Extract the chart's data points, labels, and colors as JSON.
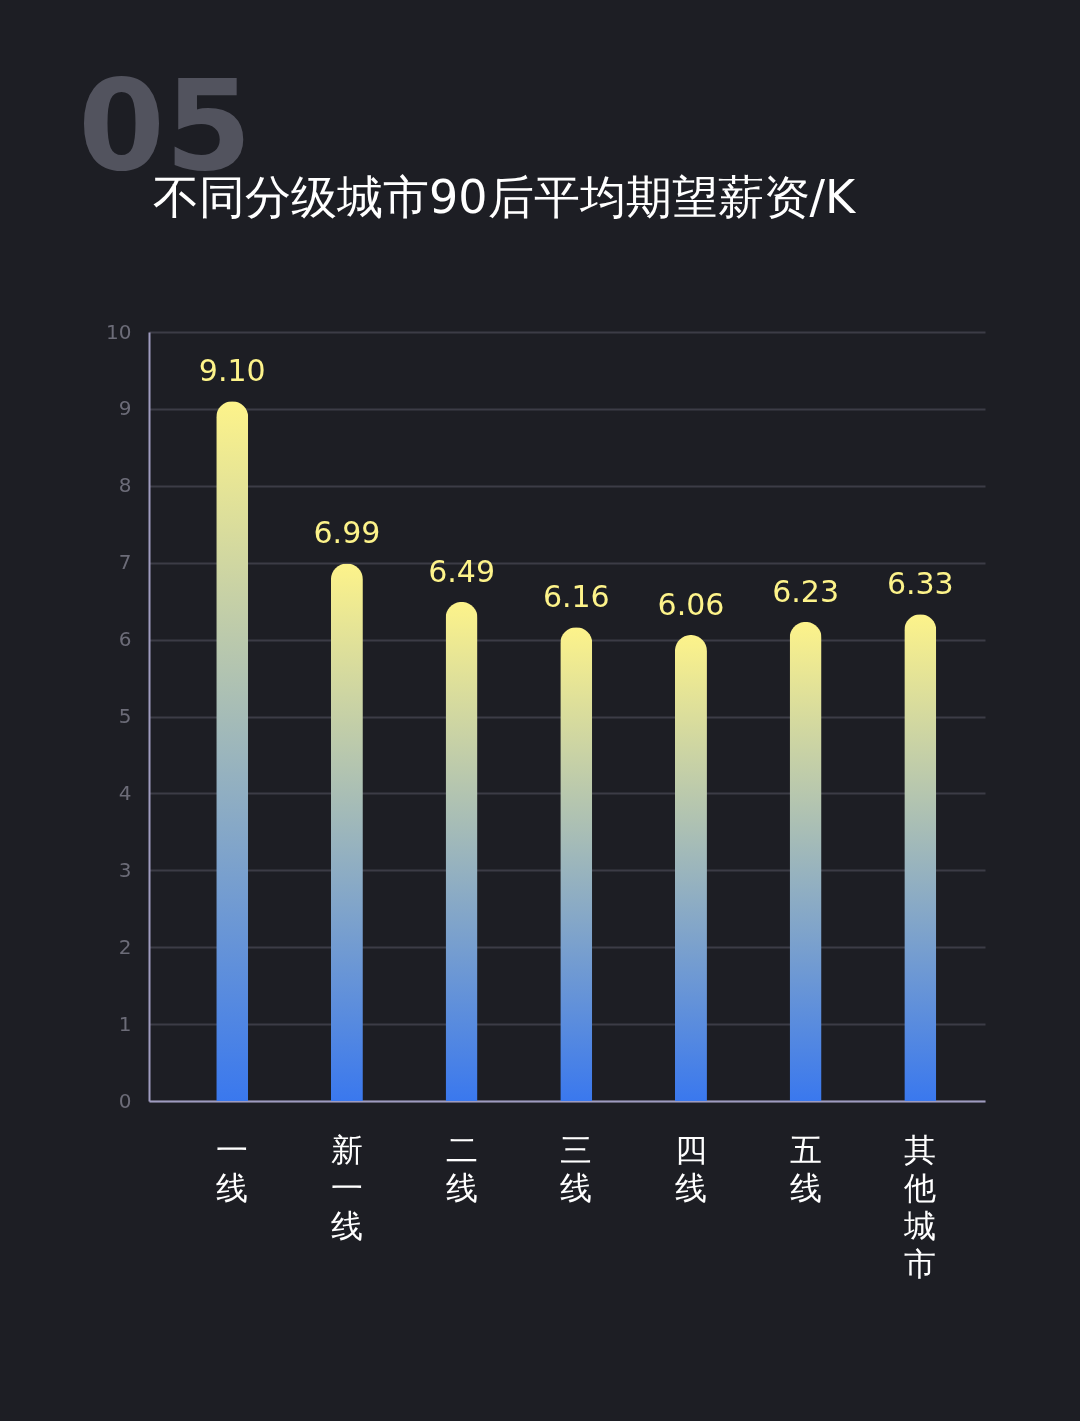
{
  "chart_data": {
    "type": "bar",
    "title": "不同分级城市90后平均期望薪资/K",
    "categories": [
      "一线",
      "新一线",
      "二线",
      "三线",
      "四线",
      "五线",
      "其他城市"
    ],
    "values": [
      9.1,
      6.99,
      6.49,
      6.16,
      6.06,
      6.23,
      6.33
    ],
    "value_labels": [
      "9.10",
      "6.99",
      "6.49",
      "6.16",
      "6.06",
      "6.23",
      "6.33"
    ],
    "color": "#fdf38a",
    "ylim": [
      0,
      10
    ],
    "yticks": [
      0,
      1,
      2,
      3,
      4,
      5,
      6,
      7,
      8,
      9,
      10
    ],
    "grid": "y",
    "annotations": [
      "05"
    ]
  }
}
